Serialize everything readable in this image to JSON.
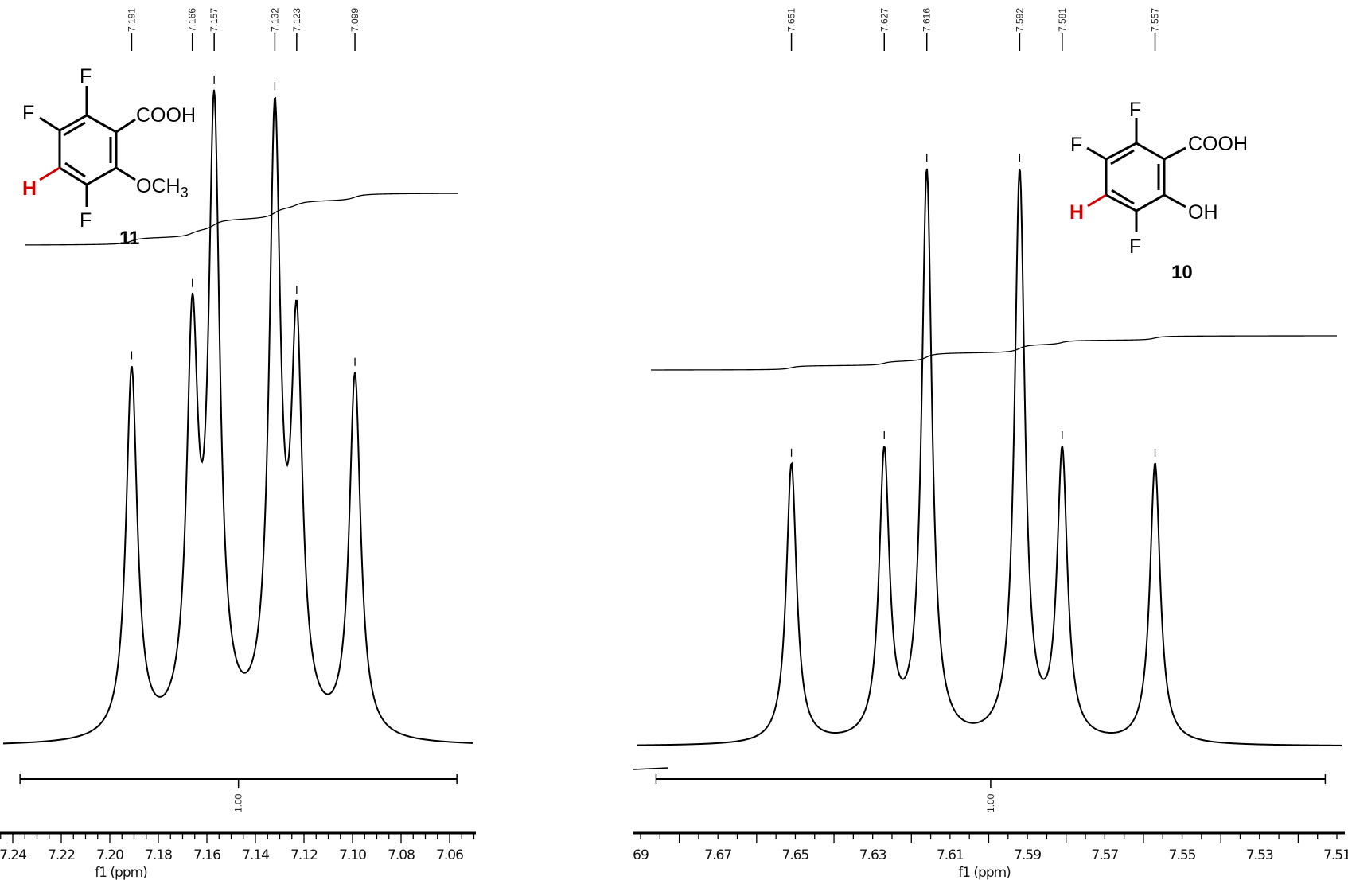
{
  "chart_data": [
    {
      "type": "line",
      "title": "",
      "xlabel": "f1 (ppm)",
      "ylabel": "",
      "xlim": [
        7.245,
        7.05
      ],
      "x_reversed": true,
      "x_ticks": [
        "7.24",
        "7.22",
        "7.20",
        "7.18",
        "7.16",
        "7.14",
        "7.12",
        "7.10",
        "7.08",
        "7.06"
      ],
      "peaks": [
        {
          "label": "7.191",
          "ppm": 7.191,
          "relative_intensity": 0.58
        },
        {
          "label": "7.166",
          "ppm": 7.166,
          "relative_intensity": 0.69
        },
        {
          "label": "7.157",
          "ppm": 7.157,
          "relative_intensity": 1.0
        },
        {
          "label": "7.132",
          "ppm": 7.132,
          "relative_intensity": 0.99
        },
        {
          "label": "7.123",
          "ppm": 7.123,
          "relative_intensity": 0.68
        },
        {
          "label": "7.099",
          "ppm": 7.099,
          "relative_intensity": 0.57
        }
      ],
      "integral": {
        "label": "1.00",
        "from": 7.237,
        "to": 7.057
      },
      "compound": {
        "number": "11",
        "atoms": {
          "f_top": "F",
          "f_left": "F",
          "f_bottom": "F",
          "h": "H",
          "sub1": "COOH",
          "sub2": "OCH",
          "sub2_sub": "3"
        }
      }
    },
    {
      "type": "line",
      "title": "",
      "xlabel": "f1 (ppm)",
      "ylabel": "",
      "xlim": [
        7.69,
        7.508
      ],
      "x_reversed": true,
      "x_ticks": [
        "69",
        "7.67",
        "7.65",
        "7.63",
        "7.61",
        "7.59",
        "7.57",
        "7.55",
        "7.53",
        "7.51"
      ],
      "peaks": [
        {
          "label": "7.651",
          "ppm": 7.651,
          "relative_intensity": 0.49
        },
        {
          "label": "7.627",
          "ppm": 7.627,
          "relative_intensity": 0.52
        },
        {
          "label": "7.616",
          "ppm": 7.616,
          "relative_intensity": 1.0
        },
        {
          "label": "7.592",
          "ppm": 7.592,
          "relative_intensity": 1.0
        },
        {
          "label": "7.581",
          "ppm": 7.581,
          "relative_intensity": 0.52
        },
        {
          "label": "7.557",
          "ppm": 7.557,
          "relative_intensity": 0.49
        }
      ],
      "integral": {
        "label": "1.00",
        "from": 7.686,
        "to": 7.513
      },
      "compound": {
        "number": "10",
        "atoms": {
          "f_top": "F",
          "f_left": "F",
          "f_bottom": "F",
          "h": "H",
          "sub1": "COOH",
          "sub2": "OH",
          "sub2_sub": ""
        }
      }
    }
  ],
  "colors": {
    "line": "#000000",
    "highlight_h": "#d00000"
  }
}
